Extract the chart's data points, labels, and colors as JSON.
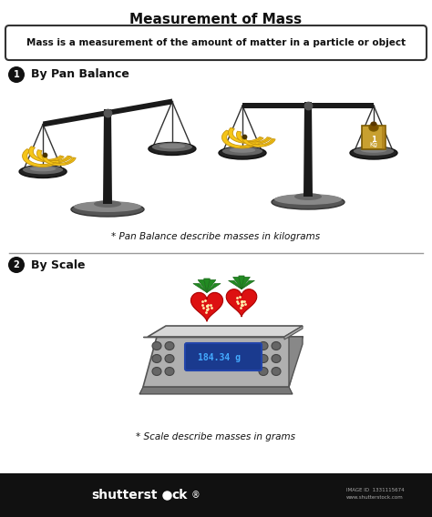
{
  "title": "Measurement of Mass",
  "subtitle": "Mass is a measurement of the amount of matter in a particle or object",
  "section1_label": "By Pan Balance",
  "section2_label": "By Scale",
  "caption1": "* Pan Balance describe masses in kilograms",
  "caption2": "* Scale describe masses in grams",
  "scale_display": "184.34 g",
  "bg_color": "#ffffff",
  "text_color": "#111111",
  "title_fontsize": 11,
  "subtitle_fontsize": 7.5,
  "caption_fontsize": 7.5,
  "section_fontsize": 9,
  "banana_color": "#F5C518",
  "banana_dark": "#C8960C",
  "banana_tip": "#4a3500",
  "scale_body_color": "#a0a0a0",
  "scale_display_bg": "#1a3a8e",
  "scale_display_text": "#44aaff",
  "weight_body": "#c8a030",
  "weight_dark": "#7a5a00",
  "stem_color": "#1a1a1a",
  "pan_dark": "#222222",
  "pan_mid": "#666666",
  "base_dark": "#444444",
  "base_light": "#888888",
  "string_color": "#333333",
  "shutterstock_bg": "#111111"
}
